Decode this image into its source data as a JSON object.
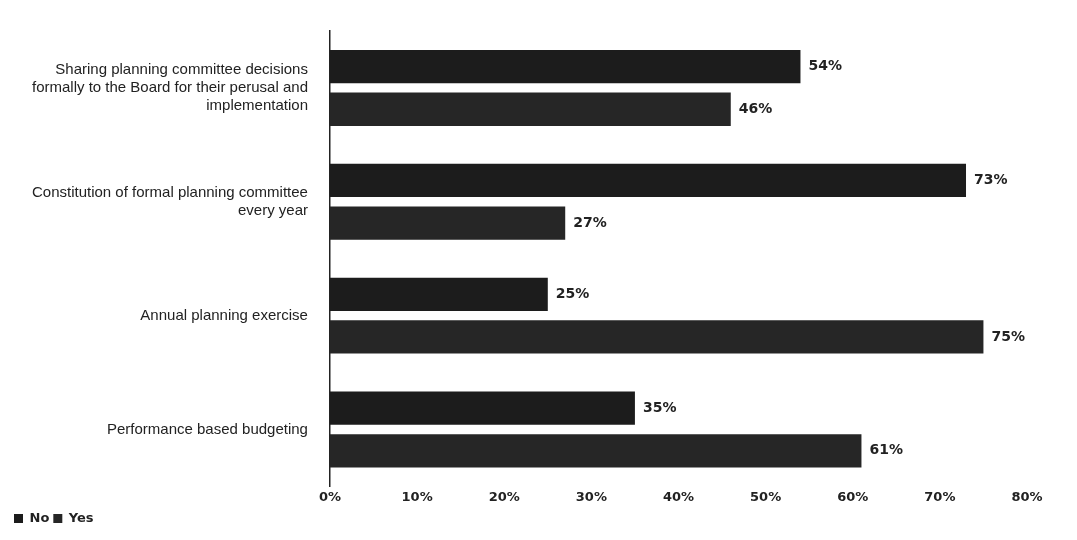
{
  "chart_data": {
    "type": "bar",
    "orientation": "horizontal",
    "categories": [
      "Sharing planning committee decisions formally to the Board for their perusal and implementation",
      "Constitution of formal planning committee every year",
      "Annual planning exercise",
      "Performance based budgeting"
    ],
    "series": [
      {
        "name": "No",
        "color": "#1c1c1c",
        "values": [
          54,
          73,
          25,
          35
        ],
        "value_labels": [
          "54%",
          "73%",
          "25%",
          "35%"
        ]
      },
      {
        "name": "Yes",
        "color": "#262626",
        "values": [
          46,
          27,
          75,
          61
        ],
        "value_labels": [
          "46%",
          "27%",
          "75%",
          "61%"
        ]
      }
    ],
    "xlim": [
      0,
      80
    ],
    "xticks": [
      {
        "value": 0,
        "label": "0%"
      },
      {
        "value": 10,
        "label": "10%"
      },
      {
        "value": 20,
        "label": "20%"
      },
      {
        "value": 30,
        "label": "30%"
      },
      {
        "value": 40,
        "label": "40%"
      },
      {
        "value": 50,
        "label": "50%"
      },
      {
        "value": 60,
        "label": "60%"
      },
      {
        "value": 70,
        "label": "70%"
      },
      {
        "value": 80,
        "label": "80%"
      }
    ],
    "grid": false,
    "legend": "bottom"
  }
}
